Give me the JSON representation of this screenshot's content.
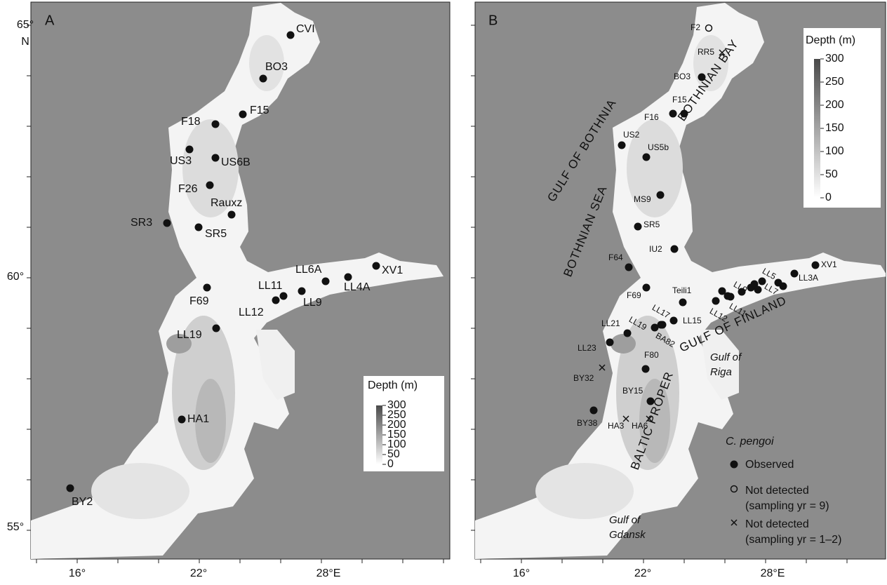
{
  "panel_a": {
    "label": "A",
    "lon_ticks": [
      "16°",
      "22°",
      "28°E"
    ],
    "lat_ticks": [
      "65°",
      "N",
      "60°",
      "55°"
    ],
    "stations": [
      "CVI",
      "BO3",
      "F15",
      "F18",
      "US3",
      "US6B",
      "F26",
      "Rauxz",
      "SR3",
      "SR5",
      "LL6A",
      "XV1",
      "LL11",
      "LL4A",
      "LL9",
      "F69",
      "LL12",
      "LL19",
      "HA1",
      "BY2"
    ],
    "depth_legend": {
      "title": "Depth (m)",
      "ticks": [
        300,
        250,
        200,
        150,
        100,
        50,
        0
      ]
    }
  },
  "panel_b": {
    "label": "B",
    "lon_ticks": [
      "16°",
      "22°",
      "28°E"
    ],
    "stations_observed": [
      "BO3",
      "F15",
      "F16",
      "US2",
      "US5b",
      "MS9",
      "SR5",
      "IU2",
      "F64",
      "F69",
      "Teili1",
      "LL15",
      "LL17",
      "LL19",
      "BA82",
      "LL21",
      "LL23",
      "F80",
      "BY15",
      "BY38",
      "LL12",
      "LL11",
      "LL9",
      "LL7",
      "LL5",
      "LL3A",
      "XV1"
    ],
    "stations_not_detected_9": [
      "F2"
    ],
    "stations_not_detected_1_2": [
      "RR5",
      "BY32",
      "HA3",
      "HA6"
    ],
    "regions": [
      "GULF OF BOTHNIA",
      "BOTHNIAN BAY",
      "BOTHNIAN SEA",
      "GULF OF FINLAND",
      "BALTIC PROPER"
    ],
    "gulfs": [
      [
        "Gulf of",
        "Riga"
      ],
      [
        "Gulf of",
        "Gdansk"
      ]
    ],
    "depth_legend": {
      "title": "Depth (m)",
      "ticks": [
        300,
        250,
        200,
        150,
        100,
        50,
        0
      ]
    },
    "legend": {
      "title": "C. pengoi",
      "observed": "Observed",
      "not_detected_9": {
        "label": "Not detected",
        "note": "(sampling yr = 9)"
      },
      "not_detected_1_2": {
        "label": "Not detected",
        "note": "(sampling yr = 1–2)"
      }
    }
  }
}
